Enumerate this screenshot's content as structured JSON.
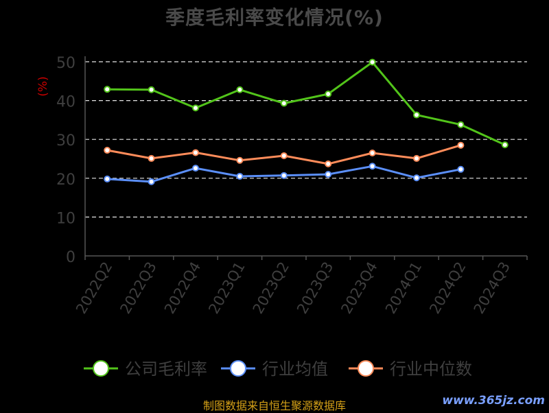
{
  "chart_data": {
    "type": "line",
    "title": "季度毛利率变化情况(%)",
    "ylabel": "(%)",
    "ylim": [
      0,
      50
    ],
    "yticks": [
      "0",
      "10",
      "20",
      "30",
      "40",
      "50"
    ],
    "categories": [
      "2022Q2",
      "2022Q3",
      "2022Q4",
      "2023Q1",
      "2023Q2",
      "2023Q3",
      "2023Q4",
      "2024Q1",
      "2024Q2",
      "2024Q3"
    ],
    "grid": true,
    "legend_position": "bottom",
    "series": [
      {
        "name": "公司毛利率",
        "color": "#52c41a",
        "values": [
          42.9,
          42.8,
          38.1,
          42.8,
          39.3,
          41.7,
          49.9,
          36.3,
          33.8,
          28.6
        ]
      },
      {
        "name": "行业均值",
        "color": "#5b8ff9",
        "values": [
          19.8,
          19.1,
          22.6,
          20.5,
          20.7,
          21.0,
          23.1,
          20.1,
          22.3,
          null
        ]
      },
      {
        "name": "行业中位数",
        "color": "#ff8c5a",
        "values": [
          27.2,
          25.1,
          26.6,
          24.6,
          25.8,
          23.7,
          26.5,
          25.1,
          28.5,
          null
        ]
      }
    ]
  },
  "footer": {
    "source": "制图数据来自恒生聚源数据库",
    "watermark": "www.365jz.com"
  }
}
